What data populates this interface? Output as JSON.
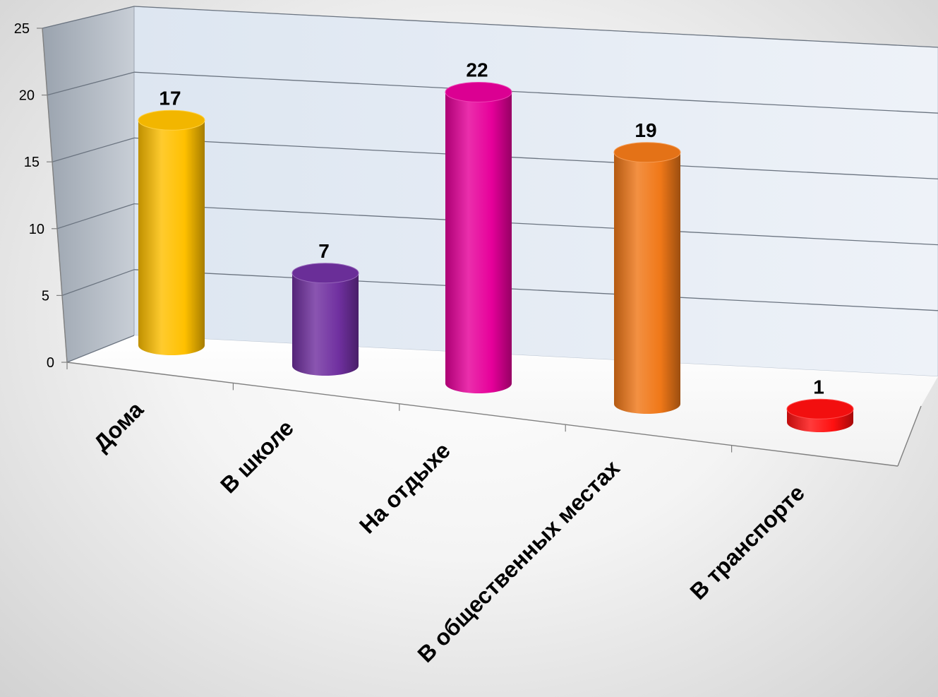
{
  "chart_data": {
    "type": "bar",
    "style": "3d-cylinder",
    "categories": [
      "Дома",
      "В школе",
      "На отдыхе",
      "В общественных местах",
      "В транспорте"
    ],
    "values": [
      17,
      7,
      22,
      19,
      1
    ],
    "colors": [
      "#ffc000",
      "#7030a0",
      "#e6009a",
      "#f07818",
      "#ff1010"
    ],
    "ylim": [
      0,
      25
    ],
    "yticks": [
      0,
      5,
      10,
      15,
      20,
      25
    ],
    "grid": true,
    "legend": "none",
    "title": "",
    "xlabel": "",
    "ylabel": ""
  }
}
